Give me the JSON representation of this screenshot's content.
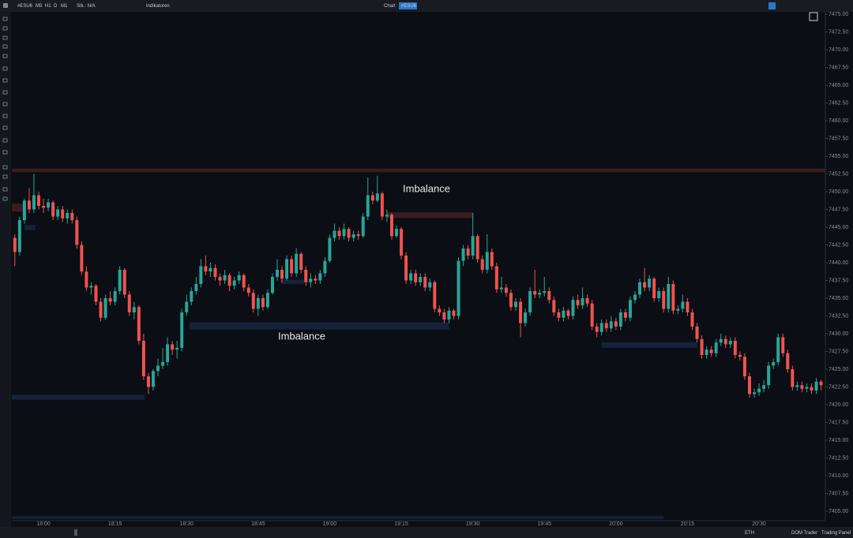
{
  "ui": {
    "symbol": "#ESU6",
    "timeframes": [
      "M5",
      "H1",
      "D",
      "M1"
    ],
    "status": "Stk.: N/A",
    "indicators": "Indikatoren",
    "tab": "Chart",
    "tab_badge": "#ESU6",
    "session": "ETH",
    "buttons": [
      "DOM Trader",
      "Trading Panel"
    ]
  },
  "chart_data": {
    "type": "candlestick",
    "annotations": [
      "Imbalance",
      "Imbalance"
    ],
    "up_color": "#26a69a",
    "down_color": "#ef5350",
    "xlim": [
      -0.63,
      169.9
    ],
    "ylim": [
      7403.67,
      7475.33
    ],
    "xticks": [
      {
        "value": 6,
        "label": "18:00"
      },
      {
        "value": 21,
        "label": "18:15"
      },
      {
        "value": 36,
        "label": "18:30"
      },
      {
        "value": 51,
        "label": "18:45"
      },
      {
        "value": 66,
        "label": "19:00"
      },
      {
        "value": 81,
        "label": "19:15"
      },
      {
        "value": 96,
        "label": "19:30"
      },
      {
        "value": 111,
        "label": "19:45"
      },
      {
        "value": 126,
        "label": "20:00"
      },
      {
        "value": 141,
        "label": "20:15"
      },
      {
        "value": 156,
        "label": "20:30"
      }
    ],
    "yticks": [
      {
        "value": 7405,
        "label": "7405.00"
      },
      {
        "value": 7407.5,
        "label": "7407.50"
      },
      {
        "value": 7410,
        "label": "7410.00"
      },
      {
        "value": 7412.5,
        "label": "7412.50"
      },
      {
        "value": 7415,
        "label": "7415.00"
      },
      {
        "value": 7417.5,
        "label": "7417.50"
      },
      {
        "value": 7420,
        "label": "7420.00"
      },
      {
        "value": 7422.5,
        "label": "7422.50"
      },
      {
        "value": 7425,
        "label": "7425.00"
      },
      {
        "value": 7427.5,
        "label": "7427.50"
      },
      {
        "value": 7430,
        "label": "7430.00"
      },
      {
        "value": 7432.5,
        "label": "7432.50"
      },
      {
        "value": 7435,
        "label": "7435.00"
      },
      {
        "value": 7437.5,
        "label": "7437.50"
      },
      {
        "value": 7440,
        "label": "7440.00"
      },
      {
        "value": 7442.5,
        "label": "7442.50"
      },
      {
        "value": 7445,
        "label": "7445.00"
      },
      {
        "value": 7447.5,
        "label": "7447.50"
      },
      {
        "value": 7450,
        "label": "7450.00"
      },
      {
        "value": 7452.5,
        "label": "7452.50"
      },
      {
        "value": 7455,
        "label": "7455.00"
      },
      {
        "value": 7457.5,
        "label": "7457.50"
      },
      {
        "value": 7460,
        "label": "7460.00"
      },
      {
        "value": 7462.5,
        "label": "7462.50"
      },
      {
        "value": 7465,
        "label": "7465.00"
      },
      {
        "value": 7467.5,
        "label": "7467.50"
      },
      {
        "value": 7470,
        "label": "7470.00"
      },
      {
        "value": 7472.5,
        "label": "7472.50"
      },
      {
        "value": 7475,
        "label": "7475.00"
      }
    ],
    "zones": [
      {
        "from": -0.63,
        "to": 169.9,
        "low": 7452.75,
        "high": 7453.25,
        "color": "#3a1c20"
      },
      {
        "from": -0.63,
        "to": 2,
        "low": 7447.2,
        "high": 7448.3,
        "color": "#3a1c20"
      },
      {
        "from": 78,
        "to": 96,
        "low": 7446.3,
        "high": 7447.1,
        "color": "#3a1c20"
      },
      {
        "from": 2,
        "to": 4.3,
        "low": 7444.6,
        "high": 7445.3,
        "color": "#16223b"
      },
      {
        "from": 55.7,
        "to": 60.6,
        "low": 7437.0,
        "high": 7437.6,
        "color": "#16223b"
      },
      {
        "from": 36.6,
        "to": 91,
        "low": 7430.6,
        "high": 7431.6,
        "color": "#16223b"
      },
      {
        "from": 123,
        "to": 143,
        "low": 7428.0,
        "high": 7428.8,
        "color": "#16223b"
      },
      {
        "from": -0.63,
        "to": 27.2,
        "low": 7420.7,
        "high": 7421.4,
        "color": "#16223b"
      },
      {
        "from": -0.63,
        "to": 136,
        "low": 7403.9,
        "high": 7404.3,
        "color": "#16223b"
      }
    ],
    "candles": [
      [
        7443.5,
        7444,
        7439.5,
        7441.5
      ],
      [
        7441.5,
        7446.5,
        7441,
        7446
      ],
      [
        7446,
        7449,
        7445.5,
        7448.75
      ],
      [
        7448.75,
        7450.5,
        7447,
        7447.5
      ],
      [
        7447.5,
        7452.5,
        7447,
        7449.5
      ],
      [
        7449.5,
        7450,
        7447.5,
        7448
      ],
      [
        7448,
        7449,
        7447,
        7447.75
      ],
      [
        7447.75,
        7449,
        7447.25,
        7448.5
      ],
      [
        7448.5,
        7448.75,
        7446,
        7446.5
      ],
      [
        7446.5,
        7448,
        7446,
        7447.5
      ],
      [
        7447.5,
        7448,
        7445.75,
        7446.25
      ],
      [
        7446.25,
        7447.5,
        7445.5,
        7447
      ],
      [
        7447,
        7447.5,
        7445.5,
        7446
      ],
      [
        7446,
        7446.5,
        7442,
        7442.5
      ],
      [
        7442.5,
        7443,
        7438.25,
        7438.75
      ],
      [
        7438.75,
        7439.5,
        7436,
        7436.5
      ],
      [
        7436.5,
        7437.25,
        7435.5,
        7436.75
      ],
      [
        7436.75,
        7437,
        7434,
        7434.5
      ],
      [
        7434.5,
        7435,
        7431.75,
        7432.25
      ],
      [
        7432.25,
        7435.5,
        7432,
        7435
      ],
      [
        7435,
        7436,
        7434,
        7434.5
      ],
      [
        7434.5,
        7436.5,
        7434,
        7436
      ],
      [
        7436,
        7439.5,
        7435.5,
        7439
      ],
      [
        7439,
        7439.25,
        7435,
        7435.5
      ],
      [
        7435.5,
        7436,
        7432.5,
        7433
      ],
      [
        7433,
        7434.5,
        7432,
        7433.75
      ],
      [
        7433.75,
        7434,
        7428.5,
        7429
      ],
      [
        7429,
        7430,
        7423.5,
        7424
      ],
      [
        7424,
        7424.5,
        7421.5,
        7422.5
      ],
      [
        7422.5,
        7425,
        7422,
        7424.75
      ],
      [
        7424.75,
        7426.5,
        7424,
        7425.5
      ],
      [
        7425.5,
        7428,
        7425,
        7426
      ],
      [
        7426,
        7429.5,
        7425.5,
        7428.5
      ],
      [
        7428.5,
        7429,
        7427,
        7427.75
      ],
      [
        7427.75,
        7429,
        7426.5,
        7428
      ],
      [
        7428,
        7433.5,
        7427.5,
        7433
      ],
      [
        7433,
        7435.5,
        7432.5,
        7434.5
      ],
      [
        7434.5,
        7436.5,
        7434,
        7436
      ],
      [
        7436,
        7438,
        7435.5,
        7437
      ],
      [
        7437,
        7440.5,
        7436.5,
        7439.5
      ],
      [
        7439.5,
        7441,
        7438.25,
        7438.75
      ],
      [
        7438.75,
        7440,
        7438,
        7439.25
      ],
      [
        7439.25,
        7439.75,
        7437.5,
        7438
      ],
      [
        7438,
        7438.5,
        7436.75,
        7437.5
      ],
      [
        7437.5,
        7439,
        7437,
        7438.25
      ],
      [
        7438.25,
        7438.5,
        7436,
        7436.75
      ],
      [
        7436.75,
        7438,
        7436.25,
        7437.5
      ],
      [
        7437.5,
        7438.75,
        7437,
        7438.25
      ],
      [
        7438.25,
        7438.5,
        7436,
        7436.5
      ],
      [
        7436.5,
        7437,
        7435.25,
        7435.75
      ],
      [
        7435.75,
        7436.25,
        7433,
        7433.5
      ],
      [
        7433.5,
        7435.5,
        7432.5,
        7435
      ],
      [
        7435,
        7435.5,
        7433.25,
        7433.75
      ],
      [
        7433.75,
        7436.25,
        7433.5,
        7435.75
      ],
      [
        7435.75,
        7438.5,
        7435.5,
        7438
      ],
      [
        7438,
        7440.5,
        7437.5,
        7439
      ],
      [
        7439,
        7439.5,
        7437.25,
        7437.75
      ],
      [
        7437.75,
        7441,
        7437.5,
        7440.5
      ],
      [
        7440.5,
        7441,
        7438,
        7438.5
      ],
      [
        7438.5,
        7442,
        7438,
        7441.25
      ],
      [
        7441.25,
        7441.5,
        7438.5,
        7439
      ],
      [
        7439,
        7439.5,
        7436.75,
        7437.25
      ],
      [
        7437.25,
        7438.5,
        7436.5,
        7437.75
      ],
      [
        7437.75,
        7438.25,
        7437,
        7437.5
      ],
      [
        7437.5,
        7439,
        7437,
        7438.5
      ],
      [
        7438.5,
        7440.75,
        7438,
        7440.25
      ],
      [
        7440.25,
        7444,
        7440,
        7443.5
      ],
      [
        7443.5,
        7445.5,
        7443,
        7444.5
      ],
      [
        7444.5,
        7445,
        7443.25,
        7443.75
      ],
      [
        7443.75,
        7445.5,
        7443.25,
        7444.75
      ],
      [
        7444.75,
        7445,
        7443,
        7443.5
      ],
      [
        7443.5,
        7444.5,
        7443,
        7444
      ],
      [
        7444,
        7444.5,
        7443.25,
        7443.75
      ],
      [
        7443.75,
        7447,
        7443.5,
        7446.5
      ],
      [
        7446.5,
        7452,
        7446,
        7449.5
      ],
      [
        7449.5,
        7450,
        7448.25,
        7448.75
      ],
      [
        7448.75,
        7452.25,
        7448.5,
        7449.75
      ],
      [
        7449.75,
        7450,
        7446,
        7446.5
      ],
      [
        7446.5,
        7447.5,
        7445.75,
        7446.75
      ],
      [
        7446.75,
        7447,
        7443.25,
        7443.75
      ],
      [
        7443.75,
        7445.25,
        7443.5,
        7444.75
      ],
      [
        7444.75,
        7445,
        7440.5,
        7441
      ],
      [
        7441,
        7441.5,
        7437,
        7437.5
      ],
      [
        7437.5,
        7439,
        7437,
        7438.5
      ],
      [
        7438.5,
        7439,
        7436.75,
        7437.25
      ],
      [
        7437.25,
        7438.5,
        7436.75,
        7438
      ],
      [
        7438,
        7438.5,
        7436,
        7436.5
      ],
      [
        7436.5,
        7437.75,
        7436,
        7437.25
      ],
      [
        7437.25,
        7437.5,
        7433,
        7433.5
      ],
      [
        7433.5,
        7434,
        7432.5,
        7433
      ],
      [
        7433,
        7433.5,
        7431.5,
        7432
      ],
      [
        7432,
        7433.75,
        7431.5,
        7433.25
      ],
      [
        7433.25,
        7433.5,
        7432,
        7432.5
      ],
      [
        7432.5,
        7440.75,
        7432,
        7440.25
      ],
      [
        7440.25,
        7442.5,
        7439.5,
        7442
      ],
      [
        7442,
        7442.5,
        7440.5,
        7441
      ],
      [
        7441,
        7447,
        7440.5,
        7443.75
      ],
      [
        7443.75,
        7444,
        7440,
        7440.5
      ],
      [
        7440.5,
        7441,
        7438.5,
        7439
      ],
      [
        7439,
        7444,
        7438.5,
        7441.5
      ],
      [
        7441.5,
        7442,
        7439,
        7439.5
      ],
      [
        7439.5,
        7440,
        7435.75,
        7436.25
      ],
      [
        7436.25,
        7438,
        7435.75,
        7436.5
      ],
      [
        7436.5,
        7437,
        7435.25,
        7435.75
      ],
      [
        7435.75,
        7436.25,
        7433.25,
        7433.75
      ],
      [
        7433.75,
        7435,
        7433.25,
        7434.5
      ],
      [
        7434.5,
        7435,
        7429.5,
        7431.5
      ],
      [
        7431.5,
        7433.5,
        7431,
        7433
      ],
      [
        7433,
        7436.5,
        7432.5,
        7436
      ],
      [
        7436,
        7439,
        7435,
        7435.5
      ],
      [
        7435.5,
        7436.25,
        7435,
        7435.75
      ],
      [
        7435.75,
        7438,
        7435.25,
        7436
      ],
      [
        7436,
        7436.5,
        7434.25,
        7434.75
      ],
      [
        7434.75,
        7435.25,
        7432.5,
        7433
      ],
      [
        7433,
        7433.5,
        7431.75,
        7432.25
      ],
      [
        7432.25,
        7433.75,
        7431.75,
        7433.25
      ],
      [
        7433.25,
        7433.5,
        7432,
        7432.5
      ],
      [
        7432.5,
        7435.25,
        7432,
        7434.75
      ],
      [
        7434.75,
        7435.5,
        7433.5,
        7434
      ],
      [
        7434,
        7436.5,
        7433.5,
        7435
      ],
      [
        7435,
        7435.5,
        7433.75,
        7434.25
      ],
      [
        7434.25,
        7434.75,
        7430.5,
        7431
      ],
      [
        7431,
        7431.5,
        7429.5,
        7430.25
      ],
      [
        7430.25,
        7432,
        7429.75,
        7431.5
      ],
      [
        7431.5,
        7432,
        7430.25,
        7430.75
      ],
      [
        7430.75,
        7432.5,
        7430.25,
        7431.75
      ],
      [
        7431.75,
        7432.25,
        7430.5,
        7431
      ],
      [
        7431,
        7433.5,
        7430.5,
        7433
      ],
      [
        7433,
        7433.5,
        7431.75,
        7432.25
      ],
      [
        7432.25,
        7435.25,
        7431.75,
        7434.75
      ],
      [
        7434.75,
        7436,
        7434.25,
        7435.5
      ],
      [
        7435.5,
        7437.75,
        7435,
        7437.25
      ],
      [
        7437.25,
        7439.25,
        7436,
        7436.5
      ],
      [
        7436.5,
        7438.25,
        7436,
        7437.75
      ],
      [
        7437.75,
        7438,
        7434.5,
        7435
      ],
      [
        7435,
        7436.5,
        7434.5,
        7436
      ],
      [
        7436,
        7436.5,
        7433,
        7433.5
      ],
      [
        7433.5,
        7438,
        7433,
        7437
      ],
      [
        7437,
        7437.5,
        7432.75,
        7433.25
      ],
      [
        7433.25,
        7434,
        7432.75,
        7433.5
      ],
      [
        7433.5,
        7435.5,
        7433,
        7434.5
      ],
      [
        7434.5,
        7435,
        7432.5,
        7433
      ],
      [
        7433,
        7433.5,
        7430.5,
        7431
      ],
      [
        7431,
        7431.5,
        7428.75,
        7429.25
      ],
      [
        7429.25,
        7429.75,
        7426.5,
        7427
      ],
      [
        7427,
        7428.25,
        7426.5,
        7427.75
      ],
      [
        7427.75,
        7428.25,
        7426.75,
        7427.25
      ],
      [
        7427.25,
        7429.25,
        7426.75,
        7428.75
      ],
      [
        7428.75,
        7430,
        7428.25,
        7429.25
      ],
      [
        7429.25,
        7429.75,
        7428,
        7428.5
      ],
      [
        7428.5,
        7429.5,
        7428,
        7429
      ],
      [
        7429,
        7429.5,
        7426.5,
        7427
      ],
      [
        7427,
        7427.5,
        7426.25,
        7426.75
      ],
      [
        7426.75,
        7427.25,
        7423.5,
        7424
      ],
      [
        7424,
        7424.5,
        7421,
        7421.5
      ],
      [
        7421.5,
        7422.25,
        7421,
        7421.75
      ],
      [
        7421.75,
        7423,
        7421.25,
        7422.25
      ],
      [
        7422.25,
        7423.5,
        7421.75,
        7422.75
      ],
      [
        7422.75,
        7426,
        7422.25,
        7425.5
      ],
      [
        7425.5,
        7426.5,
        7425,
        7426
      ],
      [
        7426,
        7430,
        7425.5,
        7429.5
      ],
      [
        7429.5,
        7430,
        7426.75,
        7427.25
      ],
      [
        7427.25,
        7427.75,
        7424.5,
        7425
      ],
      [
        7425,
        7425.5,
        7422,
        7422.5
      ],
      [
        7422.5,
        7423.25,
        7422,
        7422.75
      ],
      [
        7422.75,
        7423.25,
        7421.75,
        7422.25
      ],
      [
        7422.25,
        7423,
        7421.75,
        7422.5
      ],
      [
        7422.5,
        7423,
        7421.5,
        7422
      ],
      [
        7422,
        7423.75,
        7421.5,
        7423.25
      ],
      [
        7423.25,
        7423.5,
        7422,
        7422.75
      ]
    ]
  }
}
